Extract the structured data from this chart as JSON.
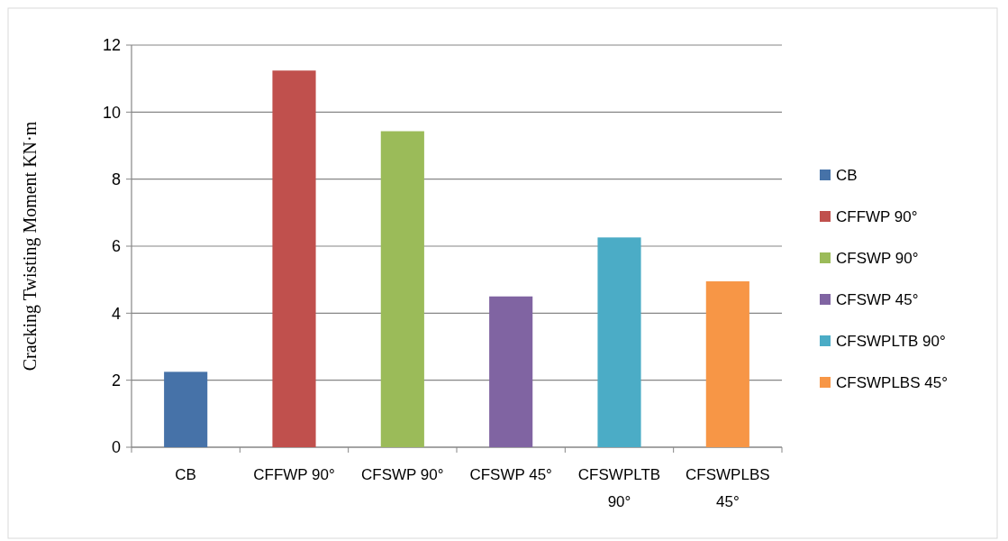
{
  "chart_data": {
    "type": "bar",
    "ylabel": "Cracking Twisting Moment KN·m",
    "categories": [
      "CB",
      "CFFWP 90°",
      "CFSWP 90°",
      "CFSWP 45°",
      "CFSWPLTB 90°",
      "CFSWPLBS 45°"
    ],
    "series": [
      {
        "name": "CB",
        "color": "#4672a8",
        "values": [
          2.25,
          null,
          null,
          null,
          null,
          null
        ]
      },
      {
        "name": "CFFWP 90°",
        "color": "#c0504d",
        "values": [
          null,
          11.24,
          null,
          null,
          null,
          null
        ]
      },
      {
        "name": "CFSWP 90°",
        "color": "#9bbb59",
        "values": [
          null,
          null,
          9.43,
          null,
          null,
          null
        ]
      },
      {
        "name": "CFSWP 45°",
        "color": "#8064a2",
        "values": [
          null,
          null,
          null,
          4.5,
          null,
          null
        ]
      },
      {
        "name": "CFSWPLTB 90°",
        "color": "#4bacc6",
        "values": [
          null,
          null,
          null,
          null,
          6.26,
          null
        ]
      },
      {
        "name": "CFSWPLBS 45°",
        "color": "#f79646",
        "values": [
          null,
          null,
          null,
          null,
          null,
          4.95
        ]
      }
    ],
    "ylim": [
      0,
      12
    ],
    "yticks": [
      0,
      2,
      4,
      6,
      8,
      10,
      12
    ],
    "grid": "y",
    "legend": "right"
  }
}
